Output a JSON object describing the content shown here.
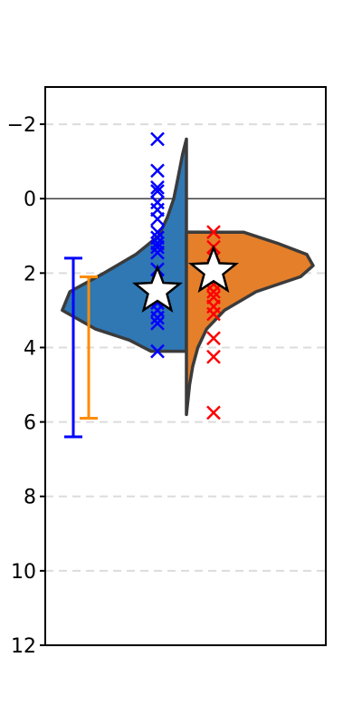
{
  "chart_data": {
    "type": "violin",
    "title": "",
    "xlabel": "",
    "ylabel": "",
    "y_axis_inverted": true,
    "ylim": [
      12,
      -3
    ],
    "y_ticks": [
      -2,
      0,
      2,
      4,
      6,
      8,
      10,
      12
    ],
    "y_tick_labels": [
      "−2",
      "0",
      "2",
      "4",
      "6",
      "8",
      "10",
      "12"
    ],
    "grid": "horizontal dashed",
    "reference_line_y": 0,
    "series": [
      {
        "side": "left",
        "color": "#2f78b4",
        "point_color": "#0000ff",
        "violin_range": [
          -1.6,
          4.1
        ],
        "density_profile": [
          [
            -1.6,
            0.0
          ],
          [
            -1.2,
            0.03
          ],
          [
            -0.5,
            0.07
          ],
          [
            0.0,
            0.1
          ],
          [
            0.5,
            0.15
          ],
          [
            1.0,
            0.22
          ],
          [
            1.5,
            0.4
          ],
          [
            2.0,
            0.65
          ],
          [
            2.5,
            0.92
          ],
          [
            3.0,
            0.98
          ],
          [
            3.5,
            0.72
          ],
          [
            3.8,
            0.45
          ],
          [
            4.1,
            0.28
          ]
        ],
        "points": [
          -1.6,
          -0.75,
          -0.3,
          -0.2,
          0.1,
          0.3,
          0.55,
          0.9,
          1.05,
          1.2,
          1.3,
          1.45,
          1.9,
          2.2,
          2.5,
          2.8,
          3.0,
          3.2,
          3.35,
          4.1
        ],
        "mean": 2.48,
        "error_bar": {
          "low": 1.6,
          "high": 6.4,
          "color": "#0000ff"
        }
      },
      {
        "side": "right",
        "color": "#e57f2a",
        "point_color": "#ff0000",
        "violin_range": [
          0.9,
          5.8
        ],
        "density_profile": [
          [
            0.9,
            0.45
          ],
          [
            1.2,
            0.72
          ],
          [
            1.5,
            0.95
          ],
          [
            1.8,
            1.0
          ],
          [
            2.1,
            0.9
          ],
          [
            2.5,
            0.55
          ],
          [
            3.0,
            0.3
          ],
          [
            3.5,
            0.16
          ],
          [
            4.0,
            0.09
          ],
          [
            4.5,
            0.05
          ],
          [
            5.0,
            0.025
          ],
          [
            5.8,
            0.0
          ]
        ],
        "points": [
          0.9,
          1.3,
          1.6,
          1.8,
          2.0,
          2.3,
          2.5,
          2.65,
          2.9,
          3.1,
          3.75,
          4.25,
          5.75
        ],
        "mean": 1.95,
        "error_bar": {
          "low": 2.1,
          "high": 5.9,
          "color": "#ff8c00"
        }
      }
    ]
  }
}
